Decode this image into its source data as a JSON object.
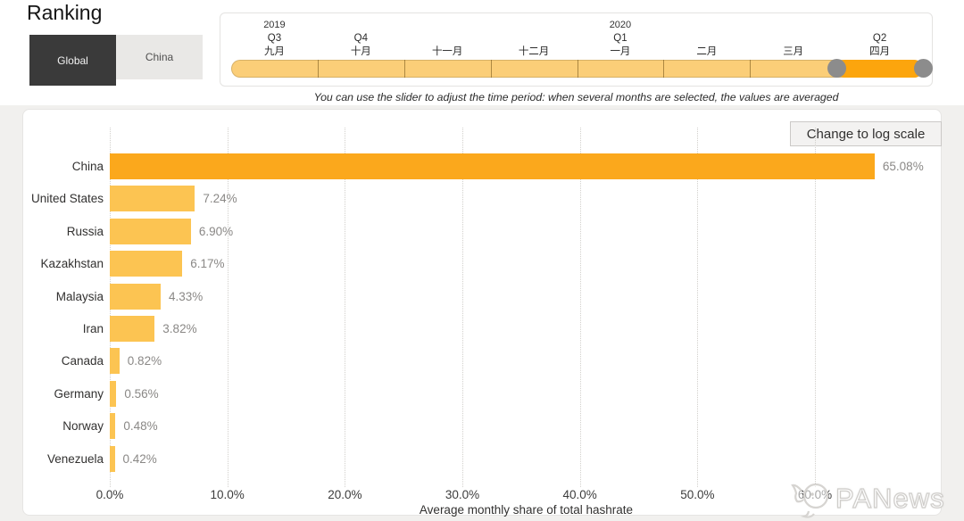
{
  "page": {
    "title": "Ranking",
    "background": "#F1F0EE"
  },
  "toggle": {
    "options": [
      {
        "label": "Global",
        "selected": true
      },
      {
        "label": "China",
        "selected": false
      }
    ]
  },
  "slider": {
    "note": "You can use the slider to adjust the time period: when several months are selected, the values are averaged",
    "selected_index": 7,
    "segments": [
      {
        "year": "2019",
        "quarter": "Q3",
        "month": "九月"
      },
      {
        "year": "",
        "quarter": "Q4",
        "month": "十月"
      },
      {
        "year": "",
        "quarter": "",
        "month": "十一月"
      },
      {
        "year": "",
        "quarter": "",
        "month": "十二月"
      },
      {
        "year": "2020",
        "quarter": "Q1",
        "month": "一月"
      },
      {
        "year": "",
        "quarter": "",
        "month": "二月"
      },
      {
        "year": "",
        "quarter": "",
        "month": "三月"
      },
      {
        "year": "",
        "quarter": "Q2",
        "month": "四月"
      }
    ],
    "colors": {
      "track": "#FBCE78",
      "selected": "#FCA50D",
      "handle": "#8C8C8C"
    }
  },
  "chart": {
    "log_button_label": "Change to log scale"
  },
  "chart_data": {
    "type": "bar",
    "orientation": "horizontal",
    "title": "Ranking",
    "categories": [
      "China",
      "United States",
      "Russia",
      "Kazakhstan",
      "Malaysia",
      "Iran",
      "Canada",
      "Germany",
      "Norway",
      "Venezuela"
    ],
    "values": [
      65.08,
      7.24,
      6.9,
      6.17,
      4.33,
      3.82,
      0.82,
      0.56,
      0.48,
      0.42
    ],
    "value_labels": [
      "65.08%",
      "7.24%",
      "6.90%",
      "6.17%",
      "4.33%",
      "3.82%",
      "0.82%",
      "0.56%",
      "0.48%",
      "0.42%"
    ],
    "x_ticks": [
      "0.0%",
      "10.0%",
      "20.0%",
      "30.0%",
      "40.0%",
      "50.0%",
      "60.0%"
    ],
    "xlim": [
      0,
      60
    ],
    "grid": "dotted-vertical",
    "legend": false,
    "xlabel": "Average monthly share of total hashrate",
    "ylabel": "",
    "bar_colors": {
      "highlight": "#FBA81C",
      "default": "#FCC452"
    },
    "value_label_color": "#8A8886"
  },
  "watermark": {
    "text": "PANews"
  }
}
